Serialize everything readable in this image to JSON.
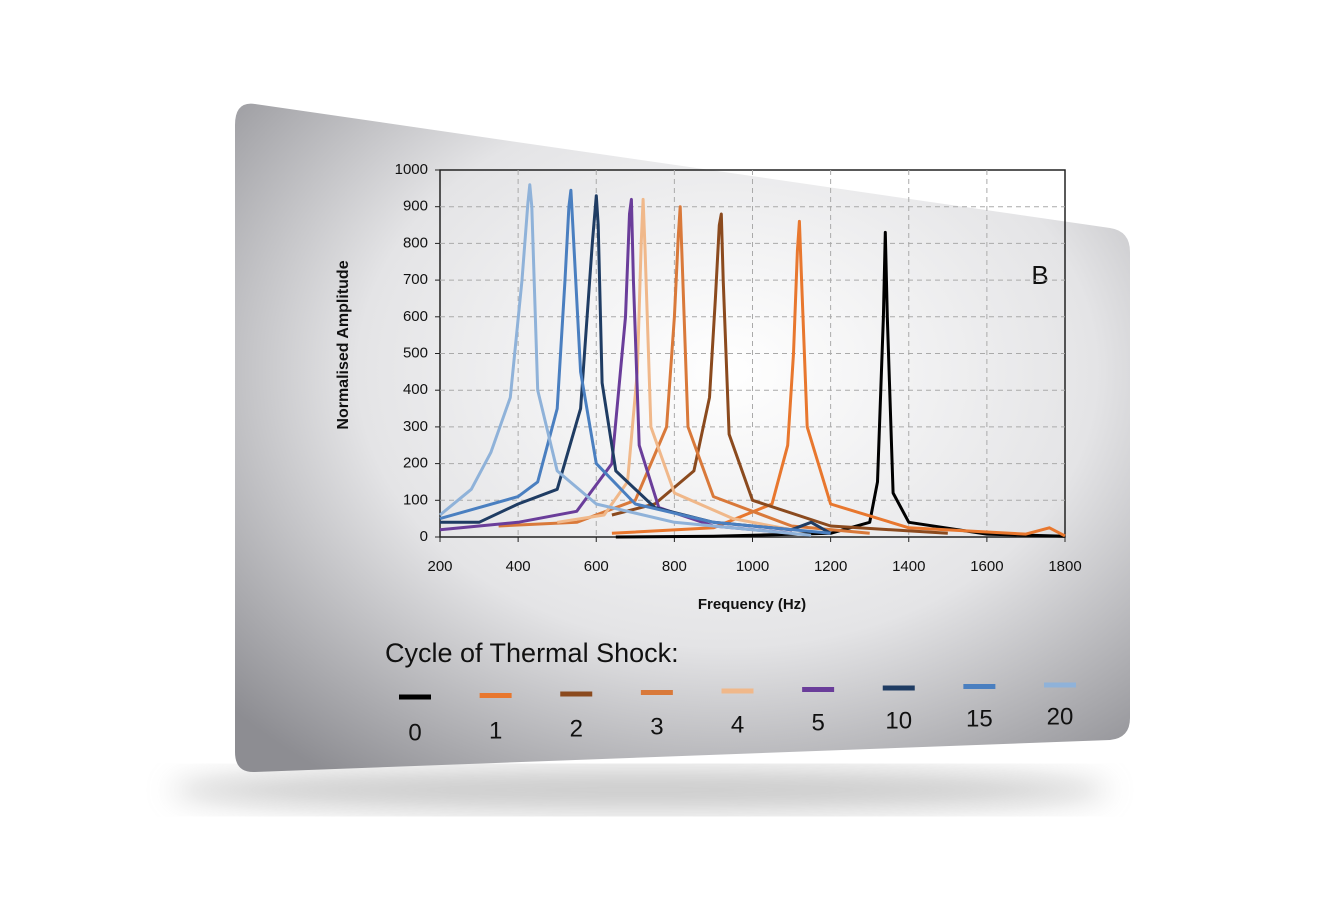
{
  "chart_data": {
    "type": "line",
    "annotation": "B",
    "xlabel": "Frequency (Hz)",
    "ylabel": "Normalised Amplitude",
    "legend_title": "Cycle of Thermal Shock:",
    "xlim": [
      200,
      1800
    ],
    "ylim": [
      0,
      1000
    ],
    "xticks": [
      200,
      400,
      600,
      800,
      1000,
      1200,
      1400,
      1600,
      1800
    ],
    "yticks": [
      0,
      100,
      200,
      300,
      400,
      500,
      600,
      700,
      800,
      900,
      1000
    ],
    "grid": true,
    "series": [
      {
        "name": "0",
        "color": "#000000",
        "x": [
          650,
          900,
          1200,
          1300,
          1320,
          1335,
          1340,
          1345,
          1360,
          1400,
          1600,
          1800
        ],
        "values": [
          0,
          2,
          10,
          40,
          150,
          600,
          830,
          600,
          120,
          40,
          8,
          2
        ]
      },
      {
        "name": "1",
        "color": "#e8772e",
        "x": [
          640,
          900,
          1050,
          1090,
          1105,
          1115,
          1120,
          1125,
          1140,
          1200,
          1400,
          1700,
          1760,
          1800
        ],
        "values": [
          10,
          25,
          90,
          250,
          500,
          780,
          860,
          720,
          300,
          90,
          25,
          8,
          25,
          3
        ]
      },
      {
        "name": "2",
        "color": "#8b4a1e",
        "x": [
          640,
          750,
          850,
          890,
          905,
          915,
          920,
          925,
          940,
          1000,
          1200,
          1500
        ],
        "values": [
          60,
          90,
          180,
          380,
          650,
          850,
          880,
          700,
          280,
          100,
          30,
          10
        ]
      },
      {
        "name": "3",
        "color": "#d9793a",
        "x": [
          350,
          550,
          700,
          780,
          800,
          810,
          815,
          820,
          835,
          900,
          1100,
          1300
        ],
        "values": [
          30,
          40,
          100,
          300,
          600,
          820,
          900,
          750,
          300,
          110,
          30,
          10
        ]
      },
      {
        "name": "4",
        "color": "#f0b88a",
        "x": [
          500,
          620,
          680,
          705,
          715,
          720,
          725,
          740,
          800,
          950,
          1100
        ],
        "values": [
          40,
          60,
          150,
          450,
          800,
          920,
          780,
          300,
          120,
          50,
          20
        ]
      },
      {
        "name": "5",
        "color": "#6a3d9a",
        "x": [
          200,
          400,
          550,
          640,
          675,
          685,
          690,
          695,
          710,
          760,
          900,
          1100
        ],
        "values": [
          20,
          40,
          70,
          200,
          600,
          880,
          920,
          700,
          250,
          80,
          30,
          10
        ]
      },
      {
        "name": "10",
        "color": "#1f3c63",
        "x": [
          200,
          300,
          400,
          500,
          560,
          590,
          600,
          605,
          615,
          650,
          750,
          900,
          1100,
          1150,
          1200
        ],
        "values": [
          40,
          40,
          90,
          130,
          350,
          800,
          930,
          850,
          420,
          180,
          80,
          40,
          20,
          40,
          10
        ]
      },
      {
        "name": "15",
        "color": "#4a7fc0",
        "x": [
          200,
          300,
          400,
          450,
          500,
          520,
          530,
          535,
          540,
          560,
          600,
          700,
          900,
          1200
        ],
        "values": [
          50,
          80,
          110,
          150,
          350,
          700,
          900,
          945,
          850,
          450,
          200,
          90,
          40,
          10
        ]
      },
      {
        "name": "20",
        "color": "#8fb2d9",
        "x": [
          200,
          280,
          330,
          380,
          410,
          425,
          430,
          435,
          450,
          500,
          600,
          800,
          1000,
          1150
        ],
        "values": [
          60,
          130,
          230,
          380,
          700,
          910,
          960,
          900,
          400,
          180,
          90,
          40,
          20,
          5
        ]
      }
    ]
  }
}
